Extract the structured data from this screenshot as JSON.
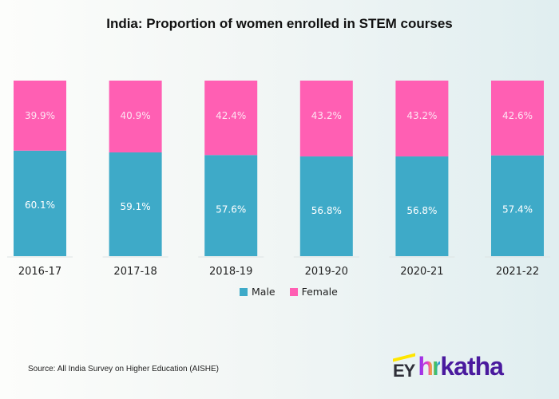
{
  "chart_data": {
    "type": "bar",
    "stacked": true,
    "title": "India: Proportion of women enrolled in STEM courses",
    "xlabel": "",
    "ylabel": "",
    "ylim": [
      0,
      100
    ],
    "categories": [
      "2016-17",
      "2017-18",
      "2018-19",
      "2019-20",
      "2020-21",
      "2021-22"
    ],
    "series": [
      {
        "name": "Male",
        "color": "#3eaac8",
        "values": [
          60.1,
          59.1,
          57.6,
          56.8,
          56.8,
          57.4
        ],
        "labels": [
          "60.1%",
          "59.1%",
          "57.6%",
          "56.8%",
          "56.8%",
          "57.4%"
        ]
      },
      {
        "name": "Female",
        "color": "#ff5fb3",
        "values": [
          39.9,
          40.9,
          42.4,
          43.2,
          43.2,
          42.6
        ],
        "labels": [
          "39.9%",
          "40.9%",
          "42.4%",
          "43.2%",
          "43.2%",
          "42.6%"
        ]
      }
    ],
    "legend": {
      "position": "bottom-center",
      "items": [
        "Male",
        "Female"
      ]
    },
    "grid": false
  },
  "source": "Source: All India Survey on Higher Education (AISHE)",
  "logo": {
    "ey": "EY",
    "hr": "hr",
    "katha": "katha"
  }
}
